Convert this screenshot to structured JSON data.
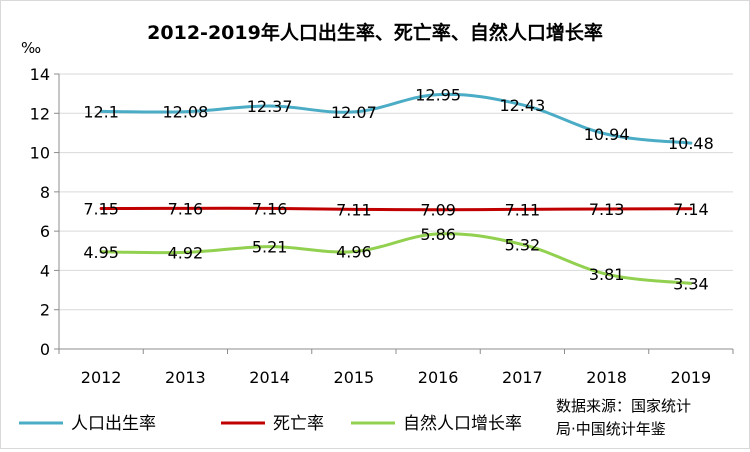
{
  "chart_data": {
    "type": "line",
    "title": "2012-2019年人口出生率、死亡率、自然人口增长率",
    "unit": "‰",
    "categories": [
      "2012",
      "2013",
      "2014",
      "2015",
      "2016",
      "2017",
      "2018",
      "2019"
    ],
    "ylim": [
      0,
      14
    ],
    "yticks": [
      0,
      2,
      4,
      6,
      8,
      10,
      12,
      14
    ],
    "grid": true,
    "legend_position": "bottom-left",
    "series": [
      {
        "name": "人口出生率",
        "color": "#4bacc6",
        "values": [
          12.1,
          12.08,
          12.37,
          12.07,
          12.95,
          12.43,
          10.94,
          10.48
        ],
        "labels": [
          "12.1",
          "12.08",
          "12.37",
          "12.07",
          "12.95",
          "12.43",
          "10.94",
          "10.48"
        ]
      },
      {
        "name": "死亡率",
        "color": "#c00000",
        "values": [
          7.15,
          7.16,
          7.16,
          7.11,
          7.09,
          7.11,
          7.13,
          7.14
        ],
        "labels": [
          "7.15",
          "7.16",
          "7.16",
          "7.11",
          "7.09",
          "7.11",
          "7.13",
          "7.14"
        ]
      },
      {
        "name": "自然人口增长率",
        "color": "#92d050",
        "values": [
          4.95,
          4.92,
          5.21,
          4.96,
          5.86,
          5.32,
          3.81,
          3.34
        ],
        "labels": [
          "4.95",
          "4.92",
          "5.21",
          "4.96",
          "5.86",
          "5.32",
          "3.81",
          "3.34"
        ]
      }
    ],
    "source_line1": "数据来源：国家统计",
    "source_line2": "局·中国统计年鉴"
  }
}
